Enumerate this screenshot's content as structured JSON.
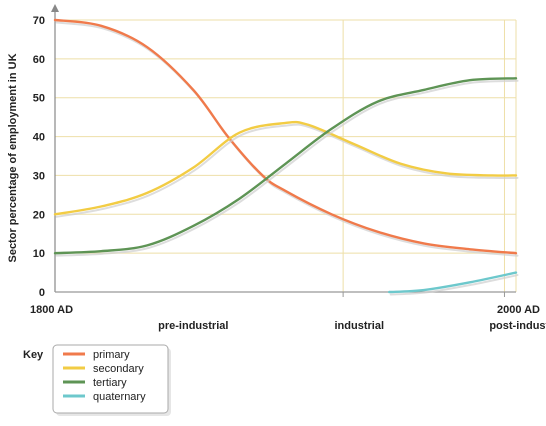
{
  "chart_data": {
    "type": "line",
    "ylabel": "Sector percentage of employment in UK",
    "ylim": [
      0,
      70
    ],
    "yticks": [
      0,
      10,
      20,
      30,
      40,
      50,
      60,
      70
    ],
    "xlim": [
      1800,
      2000
    ],
    "x_tick_labels": [
      {
        "x": 1800,
        "label": "1800 AD"
      },
      {
        "x": 2000,
        "label": "2000 AD"
      }
    ],
    "era_dividers": [
      1925,
      1995
    ],
    "era_labels": [
      {
        "x": 1860,
        "label": "pre-industrial"
      },
      {
        "x": 1932,
        "label": "industrial"
      },
      {
        "x": 2005,
        "label": "post-industrial"
      }
    ],
    "grid": true,
    "legend_title": "Key",
    "legend_position": "bottom-left",
    "series": [
      {
        "name": "primary",
        "color": "#f07a4b",
        "points": [
          [
            1800,
            70
          ],
          [
            1820,
            68.5
          ],
          [
            1840,
            63
          ],
          [
            1860,
            52
          ],
          [
            1875,
            40
          ],
          [
            1890,
            30
          ],
          [
            1900,
            26
          ],
          [
            1920,
            20
          ],
          [
            1940,
            15.5
          ],
          [
            1960,
            12.5
          ],
          [
            1980,
            11
          ],
          [
            2000,
            10
          ]
        ]
      },
      {
        "name": "secondary",
        "color": "#f2cc44",
        "points": [
          [
            1800,
            20
          ],
          [
            1820,
            22
          ],
          [
            1840,
            25.5
          ],
          [
            1860,
            32
          ],
          [
            1880,
            41
          ],
          [
            1900,
            43.5
          ],
          [
            1910,
            43
          ],
          [
            1930,
            38
          ],
          [
            1950,
            33
          ],
          [
            1970,
            30.5
          ],
          [
            1990,
            30
          ],
          [
            2000,
            30
          ]
        ]
      },
      {
        "name": "tertiary",
        "color": "#5e9455",
        "points": [
          [
            1800,
            10
          ],
          [
            1820,
            10.5
          ],
          [
            1840,
            12
          ],
          [
            1860,
            17
          ],
          [
            1880,
            24
          ],
          [
            1900,
            33
          ],
          [
            1920,
            42
          ],
          [
            1940,
            49
          ],
          [
            1960,
            52
          ],
          [
            1980,
            54.5
          ],
          [
            2000,
            55
          ]
        ]
      },
      {
        "name": "quaternary",
        "color": "#6dc8cc",
        "points": [
          [
            1945,
            0
          ],
          [
            1960,
            0.5
          ],
          [
            1980,
            2.5
          ],
          [
            2000,
            5
          ]
        ]
      }
    ]
  }
}
